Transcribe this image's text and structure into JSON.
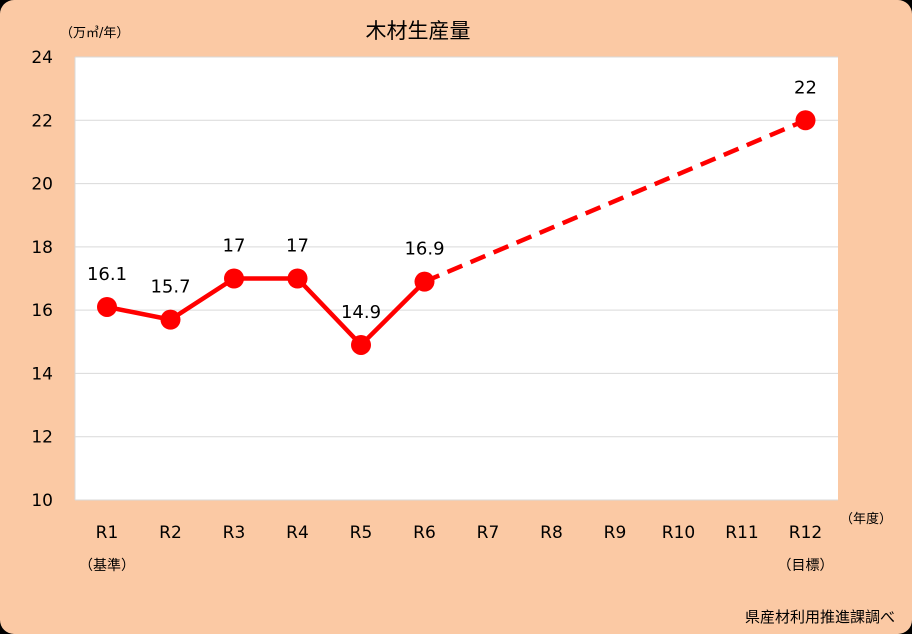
{
  "chart_data": {
    "type": "line",
    "title": "木材生産量",
    "ylabel": "（万㎥/年）",
    "xlabel": "（年度）",
    "source": "県産材利用推進課調べ",
    "categories": [
      "R1",
      "R2",
      "R3",
      "R4",
      "R5",
      "R6",
      "R7",
      "R8",
      "R9",
      "R10",
      "R11",
      "R12"
    ],
    "category_sublabels": {
      "R1": "（基準）",
      "R12": "（目標）"
    },
    "ylim": [
      10,
      24
    ],
    "yticks": [
      10,
      12,
      14,
      16,
      18,
      20,
      22,
      24
    ],
    "grid": true,
    "series": [
      {
        "style": "solid",
        "color": "#ff0000",
        "points": [
          {
            "x": "R1",
            "y": 16.1,
            "label": "16.1"
          },
          {
            "x": "R2",
            "y": 15.7,
            "label": "15.7"
          },
          {
            "x": "R3",
            "y": 17,
            "label": "17"
          },
          {
            "x": "R4",
            "y": 17,
            "label": "17"
          },
          {
            "x": "R5",
            "y": 14.9,
            "label": "14.9"
          },
          {
            "x": "R6",
            "y": 16.9,
            "label": "16.9"
          }
        ]
      },
      {
        "style": "dashed",
        "color": "#ff0000",
        "points": [
          {
            "x": "R6",
            "y": 16.9
          },
          {
            "x": "R12",
            "y": 22,
            "label": "22"
          }
        ]
      }
    ]
  },
  "colors": {
    "background": "#fbc9a4",
    "plot_area": "#ffffff",
    "gridline": "#d9d9d9",
    "line": "#ff0000"
  }
}
